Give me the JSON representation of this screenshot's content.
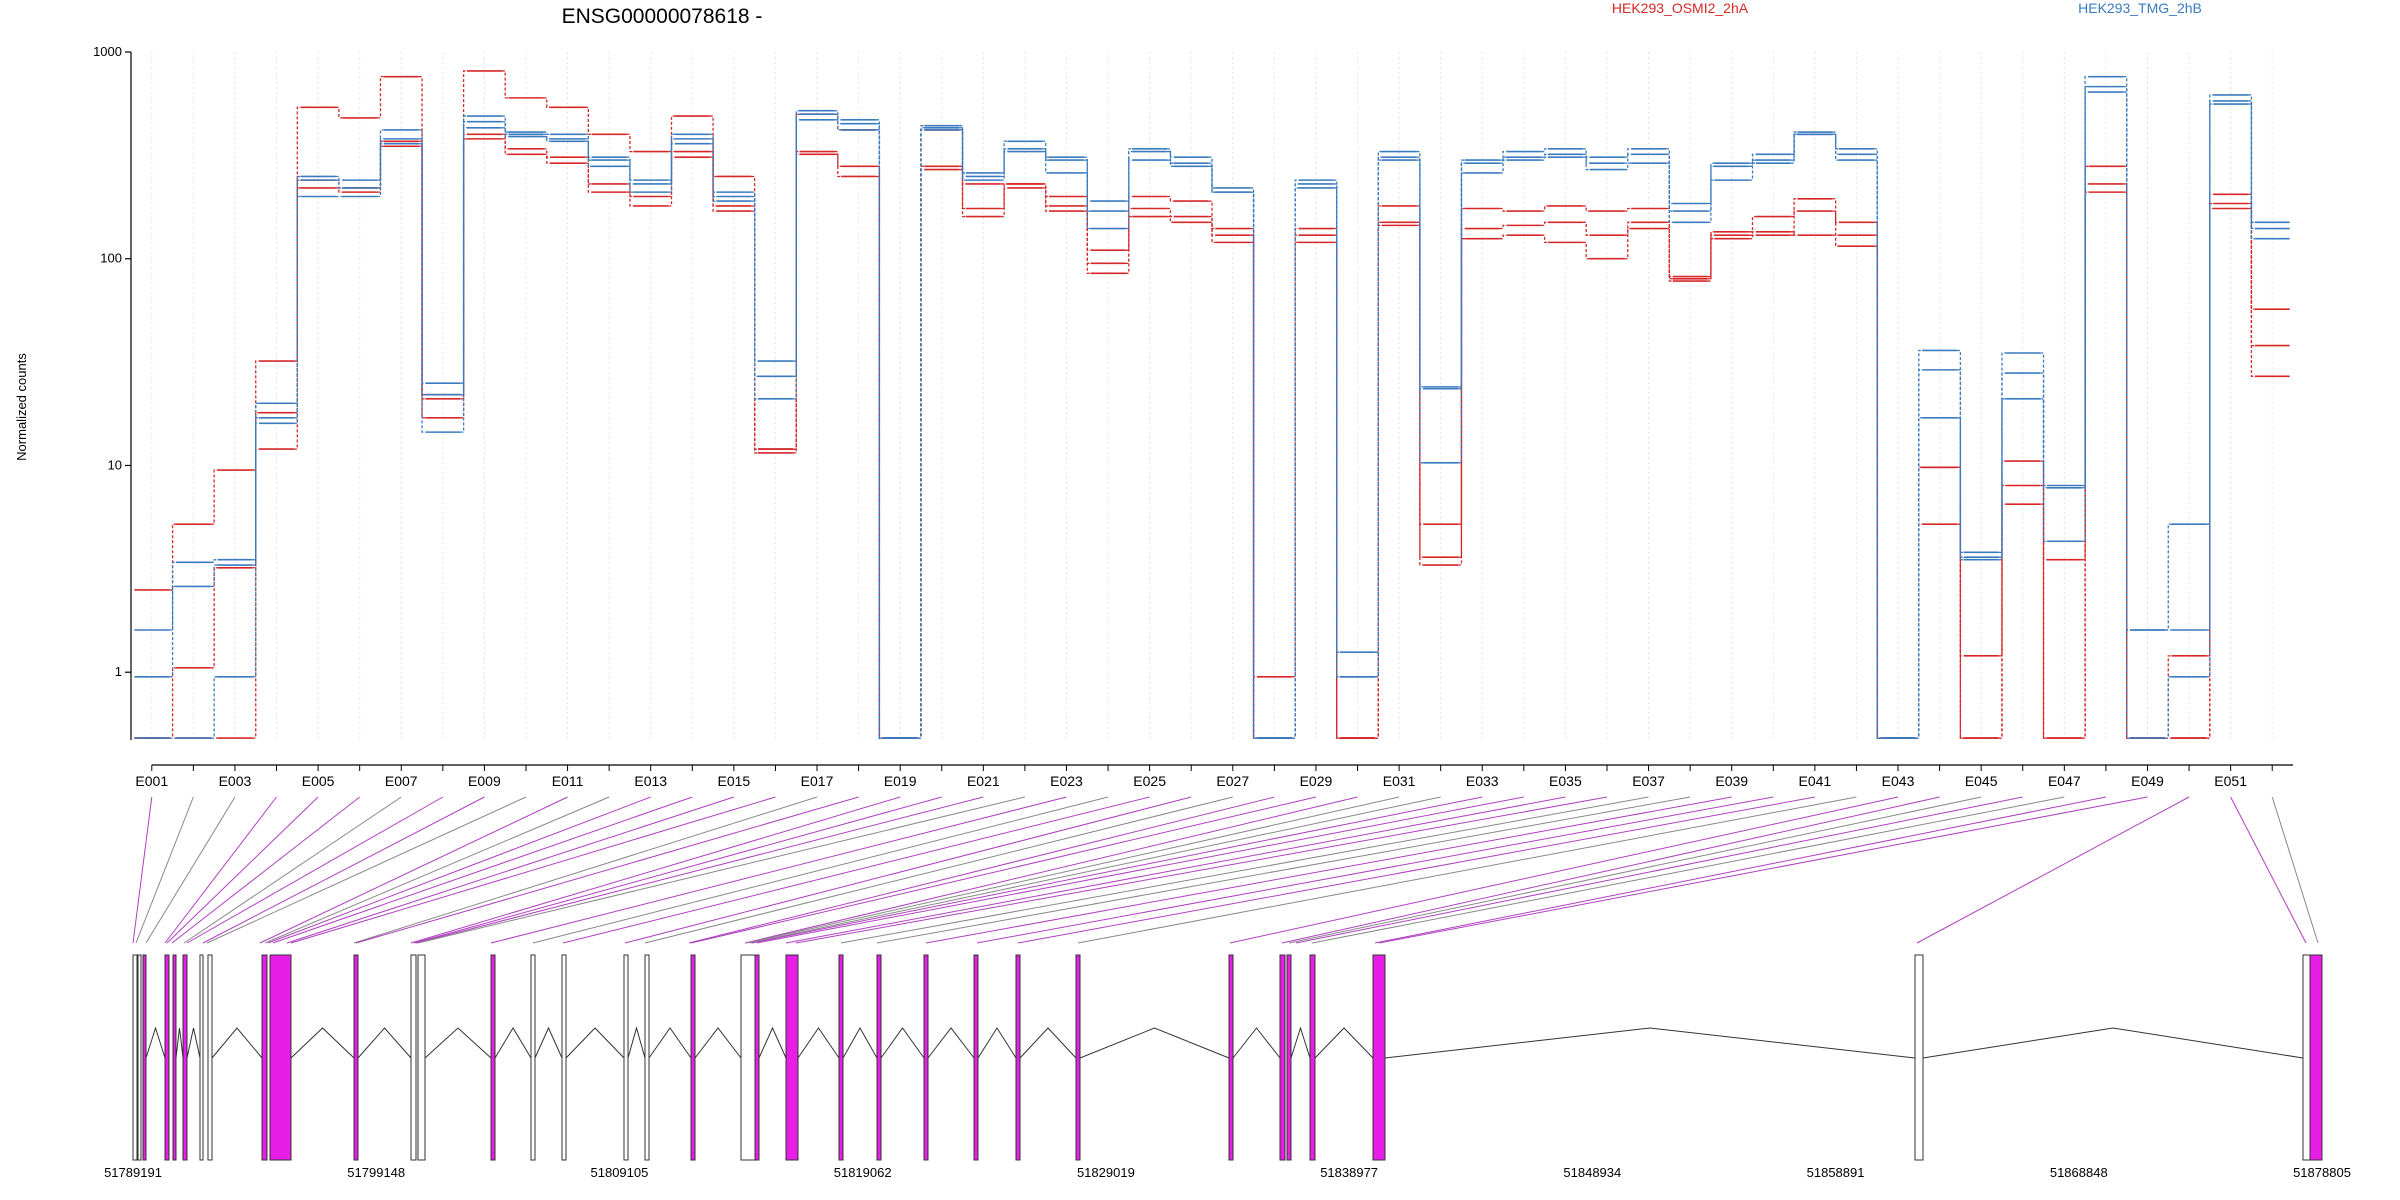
{
  "chart_data": {
    "type": "line",
    "title": "ENSG00000078618 -",
    "ylabel": "Normalized counts",
    "yscale": "log",
    "ylim": [
      0.47,
      1000
    ],
    "yticks": [
      1,
      10,
      100,
      1000
    ],
    "ytick_labels": [
      "1",
      "10",
      "100",
      "1000"
    ],
    "bins": [
      "E001",
      "E002",
      "E003",
      "E004",
      "E005",
      "E006",
      "E007",
      "E008",
      "E009",
      "E010",
      "E011",
      "E012",
      "E013",
      "E014",
      "E015",
      "E016",
      "E017",
      "E018",
      "E019",
      "E020",
      "E021",
      "E022",
      "E023",
      "E024",
      "E025",
      "E026",
      "E027",
      "E028",
      "E029",
      "E030",
      "E031",
      "E032",
      "E033",
      "E034",
      "E035",
      "E036",
      "E037",
      "E038",
      "E039",
      "E040",
      "E041",
      "E042",
      "E043",
      "E044",
      "E045",
      "E046",
      "E047",
      "E048",
      "E049",
      "E050",
      "E051",
      "E052"
    ],
    "xtick_labels": [
      "E001",
      "E003",
      "E005",
      "E007",
      "E009",
      "E011",
      "E013",
      "E015",
      "E017",
      "E019",
      "E021",
      "E023",
      "E025",
      "E027",
      "E029",
      "E031",
      "E033",
      "E035",
      "E037",
      "E039",
      "E041",
      "E043",
      "E045",
      "E047",
      "E049",
      "E051"
    ],
    "legend": [
      {
        "name": "HEK293_OSMI2_2hA",
        "color": "#d62728"
      },
      {
        "name": "HEK293_TMG_2hB",
        "color": "#3a7bbf"
      }
    ],
    "series": [
      {
        "group": "HEK293_OSMI2_2hA",
        "color": "#d62728",
        "values": [
          2.5,
          5.2,
          9.5,
          32,
          540,
          480,
          760,
          21,
          810,
          600,
          540,
          400,
          330,
          490,
          250,
          12,
          500,
          420,
          0.48,
          420,
          230,
          230,
          200,
          110,
          200,
          190,
          140,
          0.95,
          140,
          0.48,
          180,
          5.2,
          175,
          170,
          180,
          170,
          175,
          82,
          135,
          160,
          195,
          150,
          0.48,
          9.8,
          1.2,
          10.5,
          0.48,
          280,
          0.48,
          0.48,
          205,
          57
        ]
      },
      {
        "group": "HEK293_OSMI2_2hA",
        "color": "#d62728",
        "values": [
          0.48,
          1.05,
          3.2,
          18,
          240,
          220,
          370,
          17,
          400,
          340,
          310,
          230,
          200,
          330,
          180,
          12,
          330,
          280,
          0.48,
          280,
          175,
          230,
          180,
          95,
          175,
          160,
          130,
          0.48,
          130,
          0.48,
          150,
          3.6,
          140,
          145,
          150,
          130,
          150,
          80,
          130,
          135,
          130,
          130,
          0.48,
          5.2,
          0.48,
          8,
          3.5,
          210,
          0.48,
          1.2,
          185,
          38
        ]
      },
      {
        "group": "HEK293_OSMI2_2hA",
        "color": "#d62728",
        "values": [
          0.48,
          0.48,
          0.48,
          12,
          220,
          210,
          350,
          22,
          380,
          320,
          290,
          210,
          180,
          310,
          170,
          11.5,
          320,
          250,
          0.48,
          270,
          160,
          220,
          170,
          85,
          160,
          150,
          120,
          0.48,
          120,
          0.48,
          145,
          3.3,
          125,
          130,
          120,
          100,
          140,
          78,
          125,
          130,
          170,
          115,
          0.48,
          9.8,
          0.48,
          6.5,
          0.48,
          230,
          0.48,
          0.48,
          175,
          27
        ]
      },
      {
        "group": "HEK293_TMG_2hB",
        "color": "#3a7bbf",
        "values": [
          1.6,
          3.4,
          3.5,
          20,
          250,
          240,
          420,
          25,
          490,
          410,
          400,
          310,
          240,
          400,
          210,
          32,
          520,
          470,
          0.48,
          440,
          260,
          370,
          310,
          190,
          340,
          310,
          220,
          0.48,
          240,
          1.25,
          330,
          24,
          300,
          330,
          340,
          310,
          340,
          185,
          290,
          320,
          410,
          340,
          0.48,
          36,
          3.8,
          35,
          8,
          760,
          1.6,
          5.2,
          620,
          150
        ]
      },
      {
        "group": "HEK293_TMG_2hB",
        "color": "#3a7bbf",
        "values": [
          0.95,
          2.6,
          3.3,
          17,
          240,
          220,
          380,
          22,
          460,
          400,
          380,
          300,
          230,
          380,
          200,
          27,
          500,
          450,
          0.48,
          430,
          250,
          340,
          300,
          170,
          330,
          290,
          210,
          0.48,
          230,
          0.95,
          310,
          10.3,
          290,
          310,
          320,
          290,
          320,
          170,
          280,
          300,
          400,
          320,
          0.48,
          29,
          3.6,
          28,
          7.8,
          680,
          1.6,
          1.6,
          580,
          140
        ]
      },
      {
        "group": "HEK293_TMG_2hB",
        "color": "#3a7bbf",
        "values": [
          0.48,
          0.48,
          0.95,
          16,
          200,
          200,
          360,
          14.5,
          430,
          390,
          370,
          280,
          210,
          360,
          190,
          21,
          470,
          420,
          0.48,
          420,
          240,
          330,
          260,
          140,
          300,
          280,
          210,
          0.48,
          220,
          0.95,
          300,
          23.5,
          260,
          300,
          310,
          270,
          290,
          150,
          240,
          290,
          400,
          300,
          0.48,
          17,
          3.5,
          21,
          4.3,
          640,
          0.48,
          0.95,
          560,
          125
        ]
      }
    ],
    "genomic_axis": {
      "tick_labels": [
        "51789191",
        "51799148",
        "51809105",
        "51819062",
        "51829019",
        "51838977",
        "51848934",
        "51858891",
        "51868848",
        "51878805"
      ],
      "range": [
        51789191,
        51878805
      ]
    }
  }
}
